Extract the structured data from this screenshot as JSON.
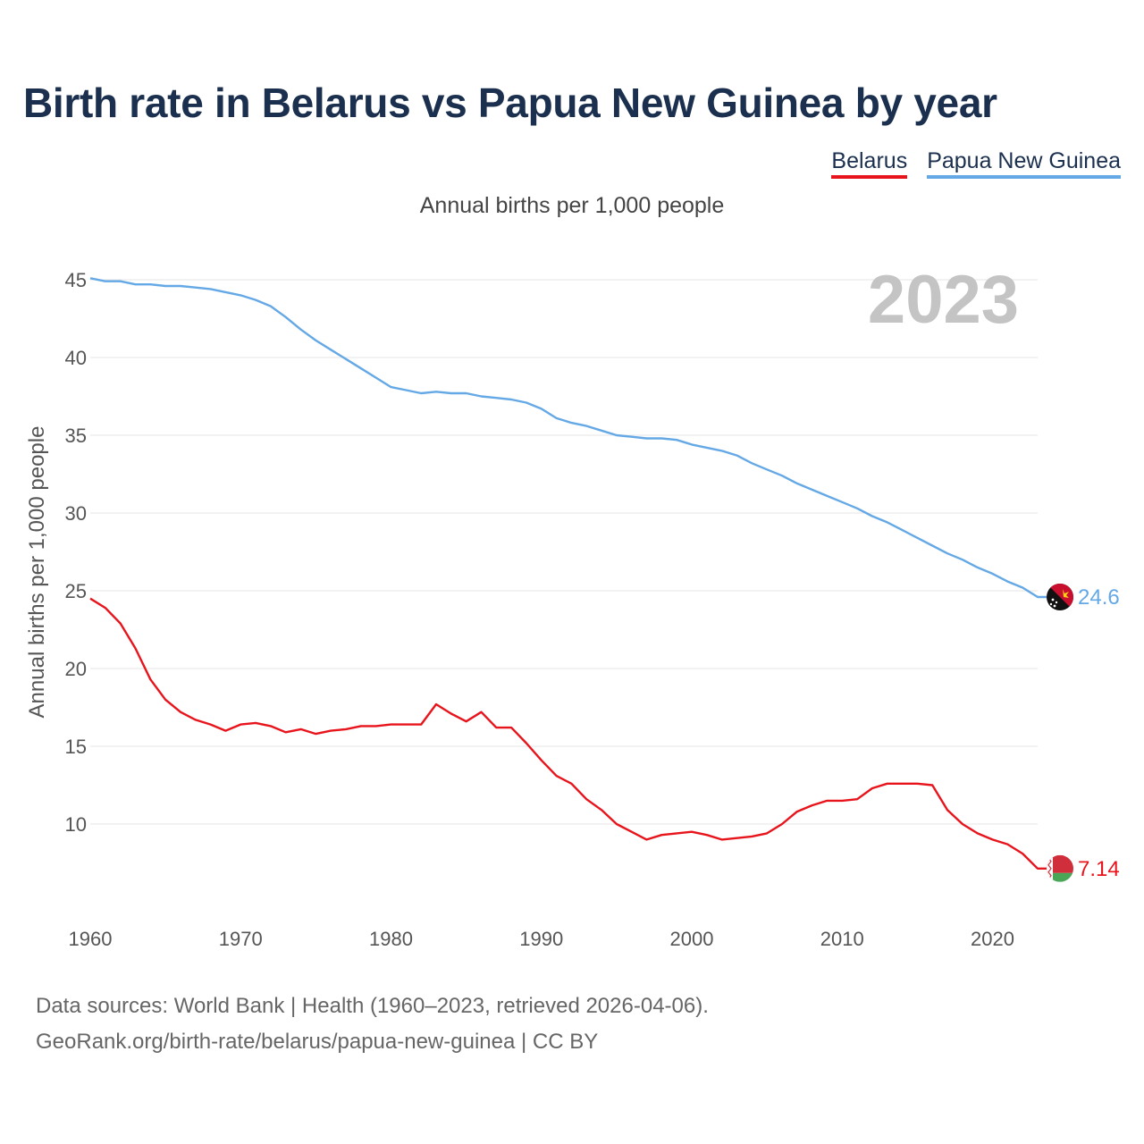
{
  "title": "Birth rate in Belarus vs Papua New Guinea by year",
  "subtitle": "Annual births per 1,000 people",
  "legend": [
    {
      "label": "Belarus",
      "color": "#e8141c"
    },
    {
      "label": "Papua New Guinea",
      "color": "#64a8e6"
    }
  ],
  "footer": {
    "line1": "Data sources: World Bank | Health (1960–2023, retrieved 2026-04-06).",
    "line2": "GeoRank.org/birth-rate/belarus/papua-new-guinea | CC BY"
  },
  "chart_data": {
    "type": "line",
    "title": "Birth rate in Belarus vs Papua New Guinea by year",
    "ylabel": "Annual births per 1,000 people",
    "xlabel": "",
    "year_display": "2023",
    "xlim": [
      1960,
      2023
    ],
    "ylim": [
      5,
      45.5
    ],
    "xticks": [
      1960,
      1970,
      1980,
      1990,
      2000,
      2010,
      2020
    ],
    "yticks": [
      10,
      15,
      20,
      25,
      30,
      35,
      40,
      45
    ],
    "grid": true,
    "legend_position": "top-right",
    "x": [
      1960,
      1961,
      1962,
      1963,
      1964,
      1965,
      1966,
      1967,
      1968,
      1969,
      1970,
      1971,
      1972,
      1973,
      1974,
      1975,
      1976,
      1977,
      1978,
      1979,
      1980,
      1981,
      1982,
      1983,
      1984,
      1985,
      1986,
      1987,
      1988,
      1989,
      1990,
      1991,
      1992,
      1993,
      1994,
      1995,
      1996,
      1997,
      1998,
      1999,
      2000,
      2001,
      2002,
      2003,
      2004,
      2005,
      2006,
      2007,
      2008,
      2009,
      2010,
      2011,
      2012,
      2013,
      2014,
      2015,
      2016,
      2017,
      2018,
      2019,
      2020,
      2021,
      2022,
      2023
    ],
    "series": [
      {
        "name": "Belarus",
        "color": "#e8141c",
        "end_label": "7.14",
        "values": [
          24.5,
          23.9,
          22.9,
          21.3,
          19.3,
          18.0,
          17.2,
          16.7,
          16.4,
          16.0,
          16.4,
          16.5,
          16.3,
          15.9,
          16.1,
          15.8,
          16.0,
          16.1,
          16.3,
          16.3,
          16.4,
          16.4,
          16.4,
          17.7,
          17.1,
          16.6,
          17.2,
          16.2,
          16.2,
          15.2,
          14.1,
          13.1,
          12.6,
          11.6,
          10.9,
          10.0,
          9.5,
          9.0,
          9.3,
          9.4,
          9.5,
          9.3,
          9.0,
          9.1,
          9.2,
          9.4,
          10.0,
          10.8,
          11.2,
          11.5,
          11.5,
          11.6,
          12.3,
          12.6,
          12.6,
          12.6,
          12.5,
          10.9,
          10.0,
          9.4,
          9.0,
          8.7,
          8.1,
          7.14
        ]
      },
      {
        "name": "Papua New Guinea",
        "color": "#64a8e6",
        "end_label": "24.6",
        "values": [
          45.1,
          44.9,
          44.9,
          44.7,
          44.7,
          44.6,
          44.6,
          44.5,
          44.4,
          44.2,
          44.0,
          43.7,
          43.3,
          42.6,
          41.8,
          41.1,
          40.5,
          39.9,
          39.3,
          38.7,
          38.1,
          37.9,
          37.7,
          37.8,
          37.7,
          37.7,
          37.5,
          37.4,
          37.3,
          37.1,
          36.7,
          36.1,
          35.8,
          35.6,
          35.3,
          35.0,
          34.9,
          34.8,
          34.8,
          34.7,
          34.4,
          34.2,
          34.0,
          33.7,
          33.2,
          32.8,
          32.4,
          31.9,
          31.5,
          31.1,
          30.7,
          30.3,
          29.8,
          29.4,
          28.9,
          28.4,
          27.9,
          27.4,
          27.0,
          26.5,
          26.1,
          25.6,
          25.2,
          24.6
        ]
      }
    ]
  }
}
